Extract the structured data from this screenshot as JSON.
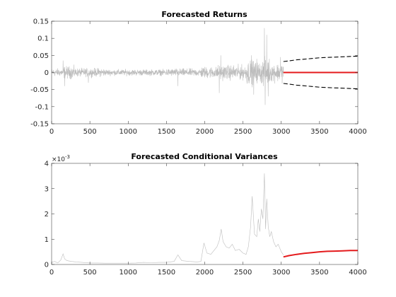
{
  "chart_data": [
    {
      "type": "line",
      "title": "Forecasted Returns",
      "xlabel": "",
      "ylabel": "",
      "xlim": [
        0,
        4000
      ],
      "ylim": [
        -0.15,
        0.15
      ],
      "x_ticks": [
        0,
        500,
        1000,
        1500,
        2000,
        2500,
        3000,
        3500,
        4000
      ],
      "x_tick_labels": [
        "0",
        "500",
        "1000",
        "1500",
        "2000",
        "2500",
        "3000",
        "3500",
        "4000"
      ],
      "y_ticks": [
        -0.15,
        -0.1,
        -0.05,
        0,
        0.05,
        0.1,
        0.15
      ],
      "y_tick_labels": [
        "-0.15",
        "-0.1",
        "-0.05",
        "0",
        "0.05",
        "0.1",
        "0.15"
      ],
      "grid": false,
      "series": [
        {
          "role": "observed",
          "style": "solid",
          "color": "#bdbdbd",
          "x_range": [
            0,
            3028
          ],
          "segments": [
            {
              "x0": 0,
              "x1": 150,
              "amplitude": 0.01
            },
            {
              "x0": 150,
              "x1": 300,
              "amplitude": 0.016
            },
            {
              "x0": 300,
              "x1": 700,
              "amplitude": 0.011
            },
            {
              "x0": 700,
              "x1": 1500,
              "amplitude": 0.008
            },
            {
              "x0": 1500,
              "x1": 1950,
              "amplitude": 0.01
            },
            {
              "x0": 1950,
              "x1": 2150,
              "amplitude": 0.015
            },
            {
              "x0": 2150,
              "x1": 2550,
              "amplitude": 0.019
            },
            {
              "x0": 2550,
              "x1": 2650,
              "amplitude": 0.032
            },
            {
              "x0": 2650,
              "x1": 2750,
              "amplitude": 0.027
            },
            {
              "x0": 2750,
              "x1": 2850,
              "amplitude": 0.036
            },
            {
              "x0": 2850,
              "x1": 3028,
              "amplitude": 0.024
            }
          ],
          "spikes": [
            {
              "x": 150,
              "y": 0.035
            },
            {
              "x": 170,
              "y": -0.04
            },
            {
              "x": 480,
              "y": -0.03
            },
            {
              "x": 1650,
              "y": -0.04
            },
            {
              "x": 2190,
              "y": -0.06
            },
            {
              "x": 2210,
              "y": 0.05
            },
            {
              "x": 2610,
              "y": 0.05
            },
            {
              "x": 2640,
              "y": -0.065
            },
            {
              "x": 2680,
              "y": 0.04
            },
            {
              "x": 2780,
              "y": 0.13
            },
            {
              "x": 2790,
              "y": -0.095
            },
            {
              "x": 2810,
              "y": 0.11
            },
            {
              "x": 2830,
              "y": -0.07
            },
            {
              "x": 2990,
              "y": 0.045
            }
          ]
        },
        {
          "role": "forecast-mean",
          "style": "solid",
          "color": "#e41a1c",
          "x": [
            3028,
            4028
          ],
          "y": [
            0,
            0
          ]
        },
        {
          "role": "forecast-upper-bound",
          "style": "dashed",
          "color": "#000000",
          "x": [
            3028,
            3100,
            3200,
            3300,
            3400,
            3500,
            3600,
            3700,
            3800,
            3900,
            4028
          ],
          "y": [
            0.032,
            0.034,
            0.037,
            0.039,
            0.041,
            0.043,
            0.044,
            0.045,
            0.046,
            0.047,
            0.048
          ]
        },
        {
          "role": "forecast-lower-bound",
          "style": "dashed",
          "color": "#000000",
          "x": [
            3028,
            3100,
            3200,
            3300,
            3400,
            3500,
            3600,
            3700,
            3800,
            3900,
            4028
          ],
          "y": [
            -0.032,
            -0.034,
            -0.037,
            -0.039,
            -0.041,
            -0.043,
            -0.044,
            -0.045,
            -0.046,
            -0.047,
            -0.048
          ]
        }
      ]
    },
    {
      "type": "line",
      "title": "Forecasted Conditional Variances",
      "xlabel": "",
      "ylabel": "",
      "xlim": [
        0,
        4000
      ],
      "ylim": [
        0,
        0.004
      ],
      "exponent_label": "×10",
      "exponent_power": "-3",
      "x_ticks": [
        0,
        500,
        1000,
        1500,
        2000,
        2500,
        3000,
        3500,
        4000
      ],
      "x_tick_labels": [
        "0",
        "500",
        "1000",
        "1500",
        "2000",
        "2500",
        "3000",
        "3500",
        "4000"
      ],
      "y_ticks": [
        0,
        0.001,
        0.002,
        0.003,
        0.004
      ],
      "y_tick_labels": [
        "0",
        "1",
        "2",
        "3",
        "4"
      ],
      "grid": false,
      "series": [
        {
          "role": "observed",
          "style": "solid",
          "color": "#bdbdbd",
          "x": [
            0,
            40,
            80,
            120,
            150,
            170,
            200,
            260,
            320,
            400,
            500,
            600,
            700,
            800,
            900,
            1000,
            1100,
            1200,
            1300,
            1400,
            1500,
            1600,
            1650,
            1680,
            1700,
            1800,
            1900,
            1950,
            1990,
            2030,
            2080,
            2120,
            2160,
            2190,
            2215,
            2240,
            2280,
            2320,
            2360,
            2400,
            2450,
            2500,
            2540,
            2570,
            2600,
            2620,
            2650,
            2680,
            2700,
            2720,
            2740,
            2760,
            2780,
            2795,
            2810,
            2830,
            2850,
            2870,
            2900,
            2930,
            2960,
            3000,
            3028
          ],
          "y": [
            8e-05,
            0.00012,
            6e-05,
            0.00018,
            0.00042,
            0.00022,
            0.00015,
            0.00012,
            0.0001,
            8e-05,
            6e-05,
            6e-05,
            5e-05,
            5e-05,
            5e-05,
            5e-05,
            6e-05,
            8e-05,
            7e-05,
            8e-05,
            8e-05,
            0.00012,
            0.00038,
            0.00024,
            0.00015,
            0.00012,
            0.0001,
            0.00012,
            0.00085,
            0.00045,
            0.0004,
            0.00055,
            0.0007,
            0.00095,
            0.0014,
            0.0009,
            0.0007,
            0.00065,
            0.0008,
            0.00055,
            0.0006,
            0.00045,
            0.0004,
            0.0007,
            0.0015,
            0.0027,
            0.0012,
            0.0011,
            0.0018,
            0.0013,
            0.0022,
            0.0018,
            0.0036,
            0.0014,
            0.0026,
            0.0015,
            0.0011,
            0.0013,
            0.0009,
            0.0007,
            0.0008,
            0.0005,
            0.00038
          ]
        },
        {
          "role": "forecast",
          "style": "solid",
          "color": "#e41a1c",
          "x": [
            3028,
            3100,
            3200,
            3300,
            3400,
            3500,
            3600,
            3700,
            3800,
            3900,
            4028
          ],
          "y": [
            0.0003,
            0.00035,
            0.0004,
            0.00044,
            0.00047,
            0.0005,
            0.00052,
            0.00053,
            0.00054,
            0.00055,
            0.00055
          ]
        }
      ]
    }
  ]
}
